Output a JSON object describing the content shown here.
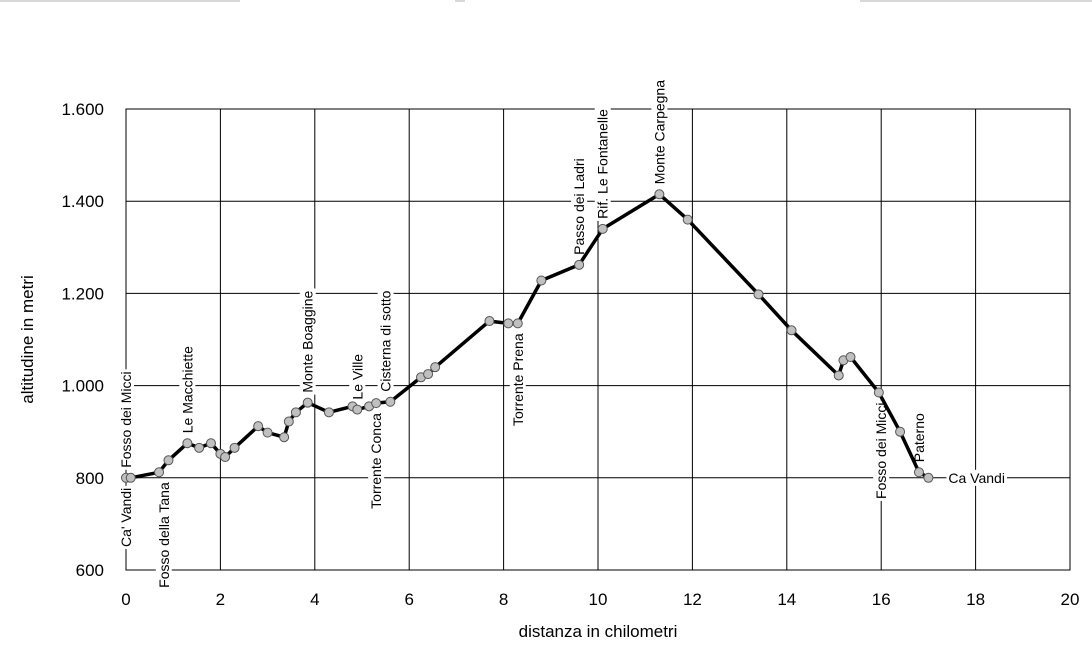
{
  "chart_data": {
    "type": "line",
    "xlabel": "distanza in chilometri",
    "ylabel": "altitudine  in metri",
    "xlim": [
      0,
      20
    ],
    "ylim": [
      600,
      1600
    ],
    "x_ticks": [
      0,
      2,
      4,
      6,
      8,
      10,
      12,
      14,
      16,
      18,
      20
    ],
    "x_tick_labels": [
      "0",
      "2",
      "4",
      "6",
      "8",
      "10",
      "12",
      "14",
      "16",
      "18",
      "20"
    ],
    "y_ticks": [
      600,
      800,
      1000,
      1200,
      1400,
      1600
    ],
    "y_tick_labels": [
      "600",
      "800",
      "1.000",
      "1.200",
      "1.400",
      "1.600"
    ],
    "grid": true,
    "series": [
      {
        "color": "#000000",
        "marker_color": "#c0c0c0",
        "x": [
          0.0,
          0.1,
          0.7,
          0.9,
          1.3,
          1.55,
          1.8,
          2.0,
          2.1,
          2.3,
          2.8,
          3.0,
          3.35,
          3.45,
          3.6,
          3.85,
          4.3,
          4.8,
          4.9,
          5.15,
          5.3,
          5.6,
          6.25,
          6.4,
          6.55,
          7.7,
          8.1,
          8.3,
          8.8,
          9.6,
          10.1,
          11.3,
          11.9,
          13.4,
          14.1,
          15.1,
          15.2,
          15.35,
          15.95,
          16.4,
          16.8,
          17.0
        ],
        "y": [
          800,
          800,
          812,
          838,
          875,
          865,
          875,
          852,
          845,
          865,
          912,
          898,
          888,
          922,
          942,
          963,
          942,
          955,
          948,
          955,
          962,
          965,
          1018,
          1025,
          1040,
          1140,
          1135,
          1135,
          1228,
          1262,
          1340,
          1415,
          1360,
          1198,
          1120,
          1022,
          1055,
          1062,
          985,
          900,
          812,
          800
        ]
      }
    ],
    "annotations": [
      {
        "text": "Fosso dei Micci",
        "x": 0.0,
        "y": 800,
        "orient": "vertical",
        "side": "above"
      },
      {
        "text": "Ca' Vandi",
        "x": 0.0,
        "y": 800,
        "orient": "vertical",
        "side": "below"
      },
      {
        "text": "Fosso della Tana",
        "x": 0.8,
        "y": 812,
        "orient": "vertical",
        "side": "below"
      },
      {
        "text": "Le Macchiette",
        "x": 1.3,
        "y": 875,
        "orient": "vertical",
        "side": "above"
      },
      {
        "text": "Monte Boaggine",
        "x": 3.85,
        "y": 963,
        "orient": "vertical",
        "side": "above"
      },
      {
        "text": "Le Ville",
        "x": 4.9,
        "y": 948,
        "orient": "vertical",
        "side": "above"
      },
      {
        "text": "Torrente Conca",
        "x": 5.3,
        "y": 962,
        "orient": "vertical",
        "side": "below"
      },
      {
        "text": "Cisterna di sotto",
        "x": 5.5,
        "y": 965,
        "orient": "vertical",
        "side": "above"
      },
      {
        "text": "Torrente Prena",
        "x": 8.3,
        "y": 1135,
        "orient": "vertical",
        "side": "below"
      },
      {
        "text": "Passo dei Ladri",
        "x": 9.6,
        "y": 1262,
        "orient": "vertical",
        "side": "above"
      },
      {
        "text": "Rif. Le Fontanelle",
        "x": 10.1,
        "y": 1340,
        "orient": "vertical",
        "side": "above"
      },
      {
        "text": "Monte Carpegna",
        "x": 11.3,
        "y": 1415,
        "orient": "vertical",
        "side": "above"
      },
      {
        "text": "Fosso dei Micci",
        "x": 16.0,
        "y": 985,
        "orient": "vertical",
        "side": "below"
      },
      {
        "text": "Paterno",
        "x": 16.8,
        "y": 812,
        "orient": "vertical",
        "side": "above"
      },
      {
        "text": "Ca Vandi",
        "x": 17.0,
        "y": 800,
        "orient": "horizontal",
        "side": "right"
      }
    ]
  }
}
